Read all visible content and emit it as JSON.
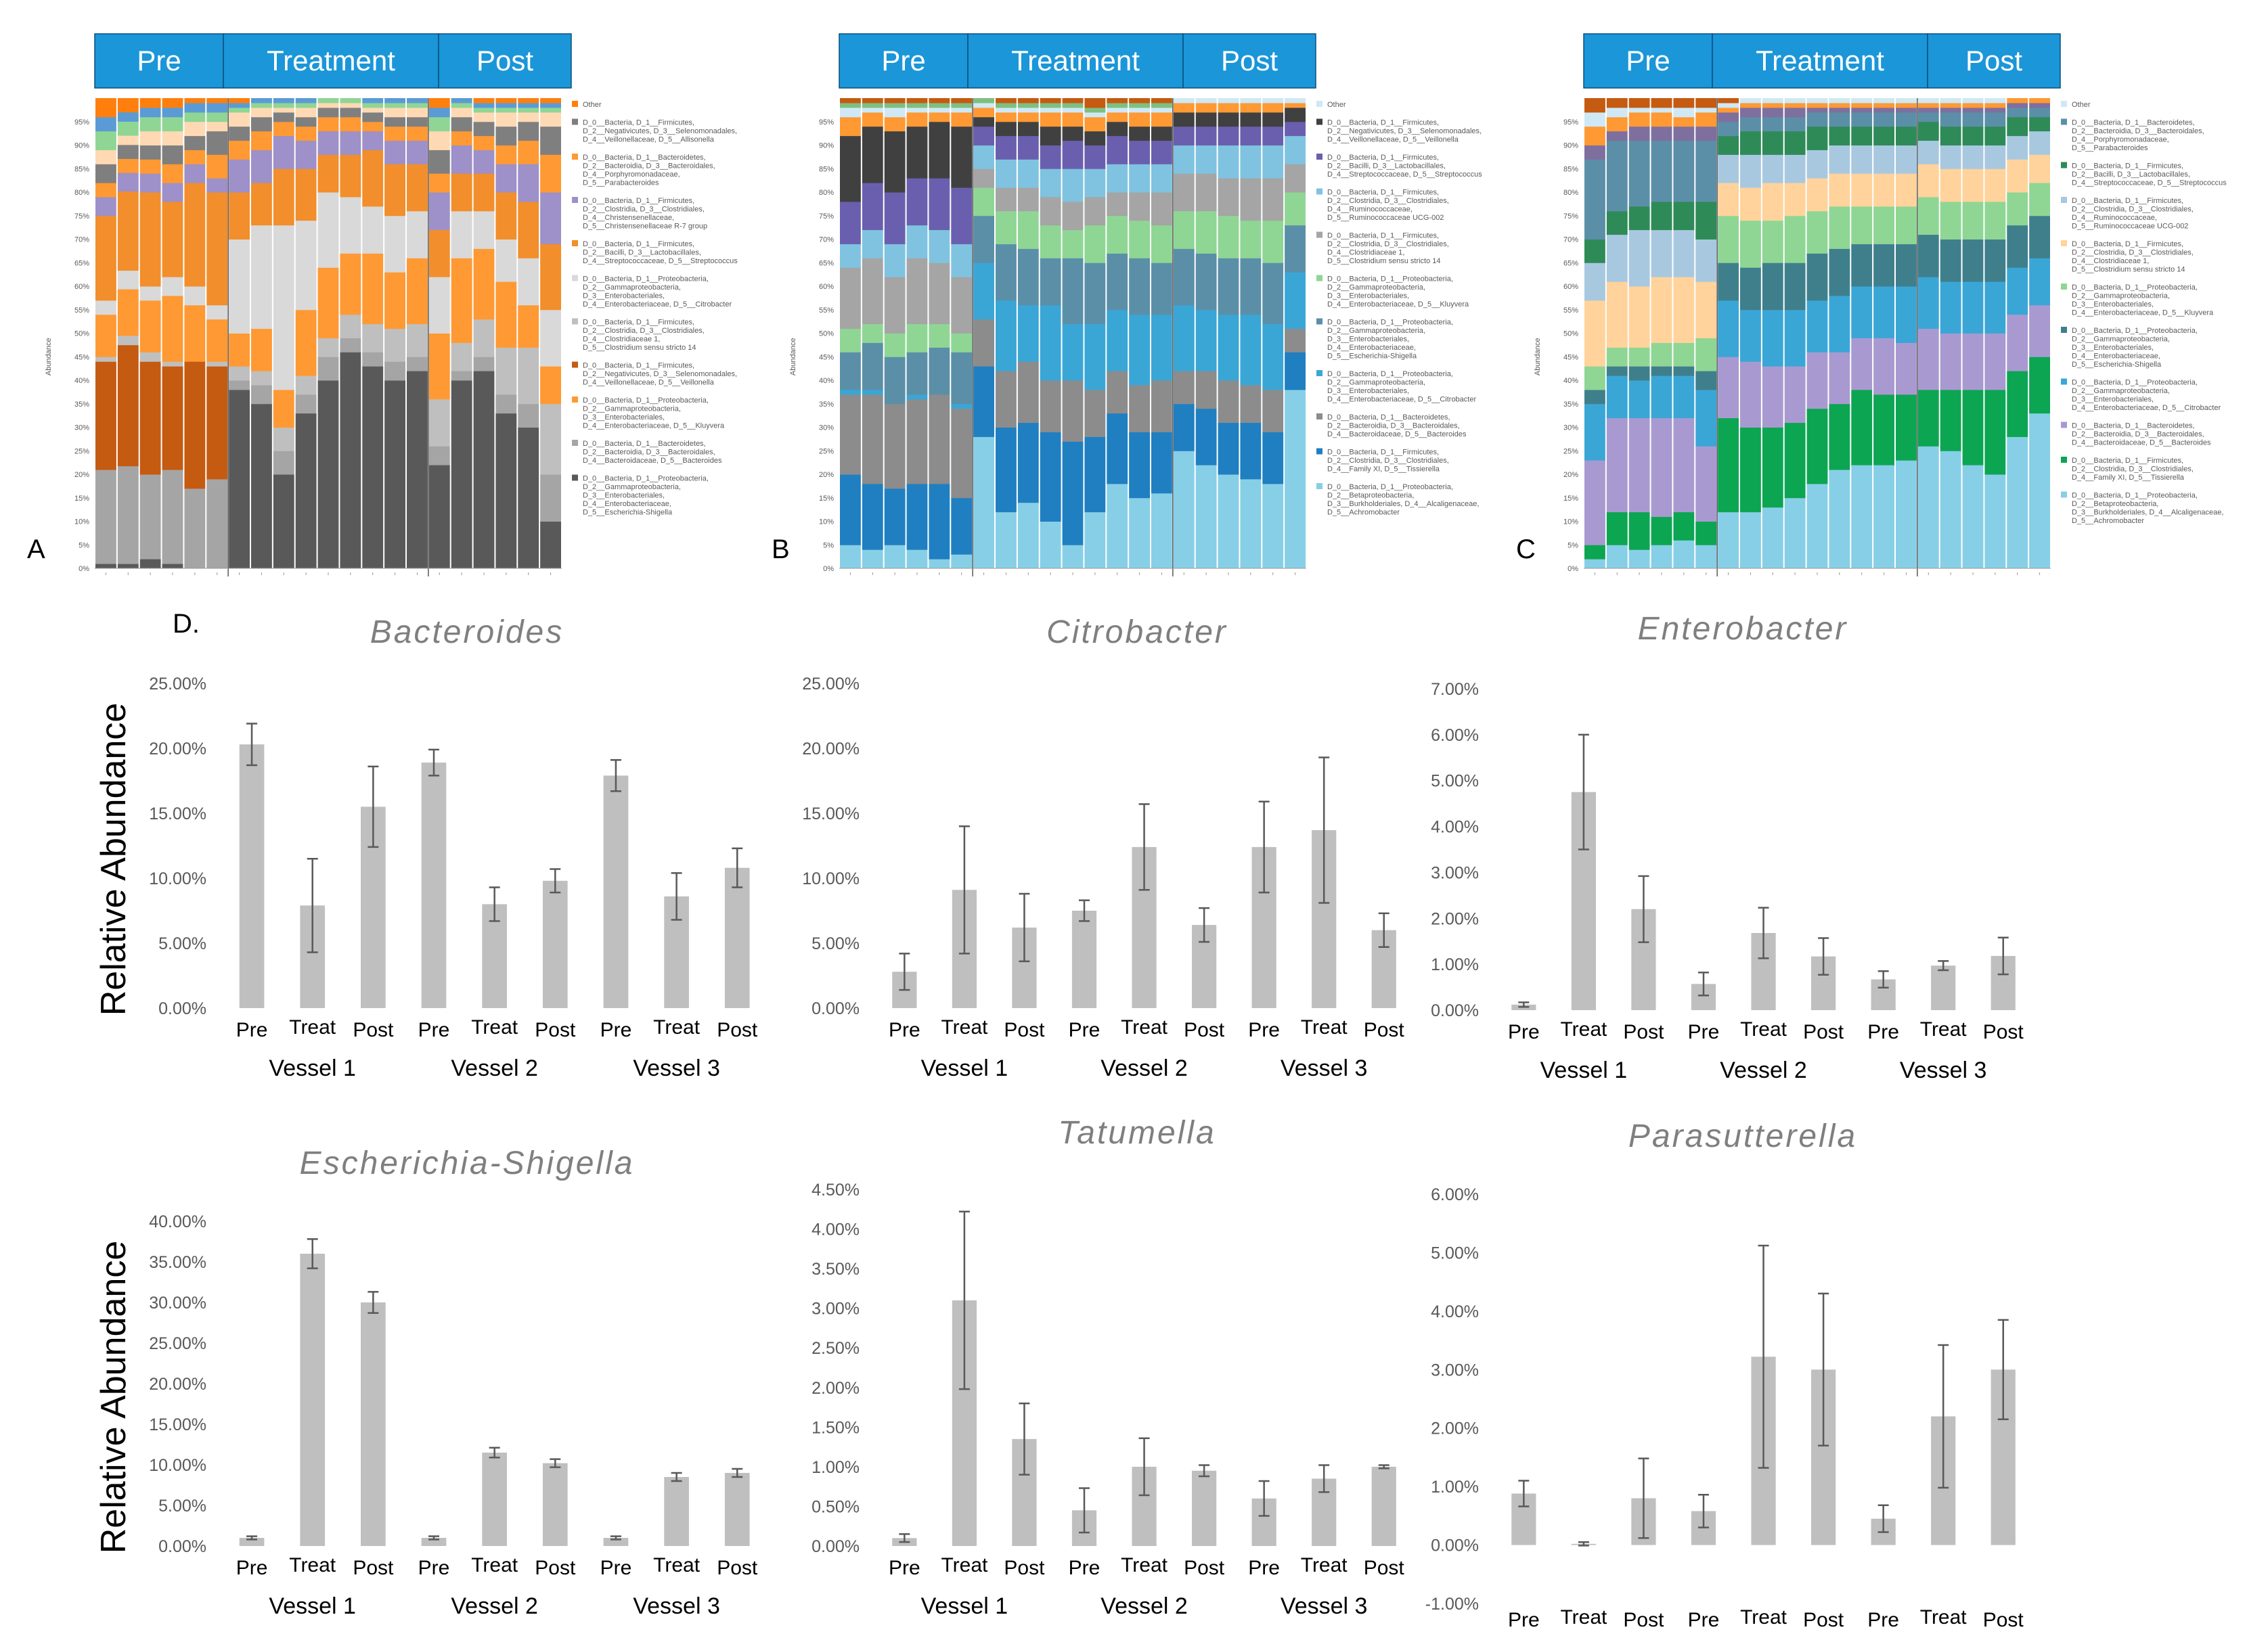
{
  "phase_headers": [
    "Pre",
    "Treatment",
    "Post"
  ],
  "panel_letters": [
    "A",
    "B",
    "C",
    "D."
  ],
  "stacked_panels": [
    {
      "letter": "A",
      "ylabel": "Abundance",
      "yticks": [
        "0%",
        "5%",
        "10%",
        "15%",
        "20%",
        "25%",
        "30%",
        "35%",
        "40%",
        "45%",
        "50%",
        "55%",
        "60%",
        "65%",
        "70%",
        "75%",
        "80%",
        "85%",
        "90%",
        "95%"
      ],
      "legend": [
        {
          "color": "#ff7f0e",
          "text": "Other"
        },
        {
          "color": "#7f7f7f",
          "text": "D_0__Bacteria, D_1__Firmicutes, D_2__Negativicutes, D_3__Selenomonadales, D_4__Veillonellaceae, D_5__Allisonella"
        },
        {
          "color": "#ff9933",
          "text": "D_0__Bacteria, D_1__Bacteroidetes, D_2__Bacteroidia, D_3__Bacteroidales, D_4__Porphyromonadaceae, D_5__Parabacteroides"
        },
        {
          "color": "#9e90c8",
          "text": "D_0__Bacteria, D_1__Firmicutes, D_2__Clostridia, D_3__Clostridiales, D_4__Christensenellaceae, D_5__Christensenellaceae R-7 group"
        },
        {
          "color": "#f28e2b",
          "text": "D_0__Bacteria, D_1__Firmicutes, D_2__Bacilli, D_3__Lactobacillales, D_4__Streptococcaceae, D_5__Streptococcus"
        },
        {
          "color": "#d9d9d9",
          "text": "D_0__Bacteria, D_1__Proteobacteria, D_2__Gammaproteobacteria, D_3__Enterobacteriales, D_4__Enterobacteriaceae, D_5__Citrobacter"
        },
        {
          "color": "#bfbfbf",
          "text": "D_0__Bacteria, D_1__Firmicutes, D_2__Clostridia, D_3__Clostridiales, D_4__Clostridiaceae 1, D_5__Clostridium sensu stricto 14"
        },
        {
          "color": "#c55a11",
          "text": "D_0__Bacteria, D_1__Firmicutes, D_2__Negativicutes, D_3__Selenomonadales, D_4__Veillonellaceae, D_5__Veillonella"
        },
        {
          "color": "#ff9933",
          "text": "D_0__Bacteria, D_1__Proteobacteria, D_2__Gammaproteobacteria, D_3__Enterobacteriales, D_4__Enterobacteriaceae, D_5__Kluyvera"
        },
        {
          "color": "#a5a5a5",
          "text": "D_0__Bacteria, D_1__Bacteroidetes, D_2__Bacteroidia, D_3__Bacteroidales, D_4__Bacteroidaceae, D_5__Bacteroides"
        },
        {
          "color": "#595959",
          "text": "D_0__Bacteria, D_1__Proteobacteria, D_2__Gammaproteobacteria, D_3__Enterobacteriales, D_4__Enterobacteriaceae, D_5__Escherichia-Shigella"
        }
      ]
    },
    {
      "letter": "B",
      "ylabel": "Abundance",
      "yticks": [
        "0%",
        "5%",
        "10%",
        "15%",
        "20%",
        "25%",
        "30%",
        "35%",
        "40%",
        "45%",
        "50%",
        "55%",
        "60%",
        "65%",
        "70%",
        "75%",
        "80%",
        "85%",
        "90%",
        "95%"
      ],
      "legend": [
        {
          "color": "#cfe8f5",
          "text": "Other"
        },
        {
          "color": "#404040",
          "text": "D_0__Bacteria, D_1__Firmicutes, D_2__Negativicutes, D_3__Selenomonadales, D_4__Veillonellaceae, D_5__Veillonella"
        },
        {
          "color": "#6a5fae",
          "text": "D_0__Bacteria, D_1__Firmicutes, D_2__Bacilli, D_3__Lactobacillales, D_4__Streptococcaceae, D_5__Streptococcus"
        },
        {
          "color": "#7fc3e0",
          "text": "D_0__Bacteria, D_1__Firmicutes, D_2__Clostridia, D_3__Clostridiales, D_4__Ruminococcaceae, D_5__Ruminococcaceae UCG-002"
        },
        {
          "color": "#a5a5a5",
          "text": "D_0__Bacteria, D_1__Firmicutes, D_2__Clostridia, D_3__Clostridiales, D_4__Clostridiaceae 1, D_5__Clostridium sensu stricto 14"
        },
        {
          "color": "#8fd694",
          "text": "D_0__Bacteria, D_1__Proteobacteria, D_2__Gammaproteobacteria, D_3__Enterobacteriales, D_4__Enterobacteriaceae, D_5__Kluyvera"
        },
        {
          "color": "#5b8fa8",
          "text": "D_0__Bacteria, D_1__Proteobacteria, D_2__Gammaproteobacteria, D_3__Enterobacteriales, D_4__Enterobacteriaceae, D_5__Escherichia-Shigella"
        },
        {
          "color": "#3aa6d6",
          "text": "D_0__Bacteria, D_1__Proteobacteria, D_2__Gammaproteobacteria, D_3__Enterobacteriales, D_4__Enterobacteriaceae, D_5__Citrobacter"
        },
        {
          "color": "#8c8c8c",
          "text": "D_0__Bacteria, D_1__Bacteroidetes, D_2__Bacteroidia, D_3__Bacteroidales, D_4__Bacteroidaceae, D_5__Bacteroides"
        },
        {
          "color": "#1f7fc1",
          "text": "D_0__Bacteria, D_1__Firmicutes, D_2__Clostridia, D_3__Clostridiales, D_4__Family XI, D_5__Tissierella"
        },
        {
          "color": "#87cfe6",
          "text": "D_0__Bacteria, D_1__Proteobacteria, D_2__Betaproteobacteria, D_3__Burkholderiales, D_4__Alcaligenaceae, D_5__Achromobacter"
        }
      ]
    },
    {
      "letter": "C",
      "ylabel": "Abundance",
      "yticks": [
        "0%",
        "5%",
        "10%",
        "15%",
        "20%",
        "25%",
        "30%",
        "35%",
        "40%",
        "45%",
        "50%",
        "55%",
        "60%",
        "65%",
        "70%",
        "75%",
        "80%",
        "85%",
        "90%",
        "95%"
      ],
      "legend": [
        {
          "color": "#cfe8f5",
          "text": "Other"
        },
        {
          "color": "#5b8fa8",
          "text": "D_0__Bacteria, D_1__Bacteroidetes, D_2__Bacteroidia, D_3__Bacteroidales, D_4__Porphyromonadaceae, D_5__Parabacteroides"
        },
        {
          "color": "#2e8b57",
          "text": "D_0__Bacteria, D_1__Firmicutes, D_2__Bacilli, D_3__Lactobacillales, D_4__Streptococcaceae, D_5__Streptococcus"
        },
        {
          "color": "#a8c8e0",
          "text": "D_0__Bacteria, D_1__Firmicutes, D_2__Clostridia, D_3__Clostridiales, D_4__Ruminococcaceae, D_5__Ruminococcaceae UCG-002"
        },
        {
          "color": "#ffd39b",
          "text": "D_0__Bacteria, D_1__Firmicutes, D_2__Clostridia, D_3__Clostridiales, D_4__Clostridiaceae 1, D_5__Clostridium sensu stricto 14"
        },
        {
          "color": "#8fd694",
          "text": "D_0__Bacteria, D_1__Proteobacteria, D_2__Gammaproteobacteria, D_3__Enterobacteriales, D_4__Enterobacteriaceae, D_5__Kluyvera"
        },
        {
          "color": "#3f7f8c",
          "text": "D_0__Bacteria, D_1__Proteobacteria, D_2__Gammaproteobacteria, D_3__Enterobacteriales, D_4__Enterobacteriaceae, D_5__Escherichia-Shigella"
        },
        {
          "color": "#3aa6d6",
          "text": "D_0__Bacteria, D_1__Proteobacteria, D_2__Gammaproteobacteria, D_3__Enterobacteriales, D_4__Enterobacteriaceae, D_5__Citrobacter"
        },
        {
          "color": "#a89ad0",
          "text": "D_0__Bacteria, D_1__Bacteroidetes, D_2__Bacteroidia, D_3__Bacteroidales, D_4__Bacteroidaceae, D_5__Bacteroides"
        },
        {
          "color": "#0ca552",
          "text": "D_0__Bacteria, D_1__Firmicutes, D_2__Clostridia, D_3__Clostridiales, D_4__Family XI, D_5__Tissierella"
        },
        {
          "color": "#87cfe6",
          "text": "D_0__Bacteria, D_1__Proteobacteria, D_2__Betaproteobacteria, D_3__Burkholderiales, D_4__Alcaligenaceae, D_5__Achromobacter"
        }
      ]
    }
  ],
  "ylabel_common": "Relative Abundance",
  "phase_labels": [
    "Pre",
    "Treat",
    "Post"
  ],
  "vessel_labels": [
    "Vessel 1",
    "Vessel 2",
    "Vessel 3"
  ],
  "colors": {
    "header": "#1b96d9",
    "bar": "#bfbfbf",
    "error": "#595959"
  },
  "chart_data": [
    {
      "type": "bar",
      "title": "Bacteroides",
      "ylabel": "Relative Abundance",
      "ylim": [
        0,
        25
      ],
      "yticks": [
        "0.00%",
        "5.00%",
        "10.00%",
        "15.00%",
        "20.00%",
        "25.00%"
      ],
      "categories": [
        "Vessel 1 Pre",
        "Vessel 1 Treat",
        "Vessel 1 Post",
        "Vessel 2 Pre",
        "Vessel 2 Treat",
        "Vessel 2 Post",
        "Vessel 3 Pre",
        "Vessel 3 Treat",
        "Vessel 3 Post"
      ],
      "values": [
        20.3,
        7.9,
        15.5,
        18.9,
        8.0,
        9.8,
        17.9,
        8.6,
        10.8
      ],
      "errors": [
        1.6,
        3.6,
        3.1,
        1.0,
        1.3,
        0.9,
        1.2,
        1.8,
        1.5
      ]
    },
    {
      "type": "bar",
      "title": "Citrobacter",
      "ylabel": "",
      "ylim": [
        0,
        25
      ],
      "yticks": [
        "0.00%",
        "5.00%",
        "10.00%",
        "15.00%",
        "20.00%",
        "25.00%"
      ],
      "categories": [
        "Vessel 1 Pre",
        "Vessel 1 Treat",
        "Vessel 1 Post",
        "Vessel 2 Pre",
        "Vessel 2 Treat",
        "Vessel 2 Post",
        "Vessel 3 Pre",
        "Vessel 3 Treat",
        "Vessel 3 Post"
      ],
      "values": [
        2.8,
        9.1,
        6.2,
        7.5,
        12.4,
        6.4,
        12.4,
        13.7,
        6.0
      ],
      "errors": [
        1.4,
        4.9,
        2.6,
        0.8,
        3.3,
        1.3,
        3.5,
        5.6,
        1.3
      ]
    },
    {
      "type": "bar",
      "title": "Enterobacter",
      "ylabel": "",
      "ylim": [
        0,
        7
      ],
      "yticks": [
        "0.00%",
        "1.00%",
        "2.00%",
        "3.00%",
        "4.00%",
        "5.00%",
        "6.00%",
        "7.00%"
      ],
      "categories": [
        "Vessel 1 Pre",
        "Vessel 1 Treat",
        "Vessel 1 Post",
        "Vessel 2 Pre",
        "Vessel 2 Treat",
        "Vessel 2 Post",
        "Vessel 3 Pre",
        "Vessel 3 Treat",
        "Vessel 3 Post"
      ],
      "values": [
        0.12,
        4.75,
        2.2,
        0.57,
        1.68,
        1.17,
        0.67,
        0.97,
        1.18
      ],
      "errors": [
        0.05,
        1.25,
        0.72,
        0.25,
        0.55,
        0.4,
        0.18,
        0.1,
        0.4
      ]
    },
    {
      "type": "bar",
      "title": "Escherichia-Shigella",
      "ylabel": "Relative Abundance",
      "ylim": [
        0,
        40
      ],
      "yticks": [
        "0.00%",
        "5.00%",
        "10.00%",
        "15.00%",
        "20.00%",
        "25.00%",
        "30.00%",
        "35.00%",
        "40.00%"
      ],
      "categories": [
        "Vessel 1 Pre",
        "Vessel 1 Treat",
        "Vessel 1 Post",
        "Vessel 2 Pre",
        "Vessel 2 Treat",
        "Vessel 2 Post",
        "Vessel 3 Pre",
        "Vessel 3 Treat",
        "Vessel 3 Post"
      ],
      "values": [
        1.0,
        36.0,
        30.0,
        1.0,
        11.5,
        10.2,
        1.0,
        8.5,
        9.0
      ],
      "errors": [
        0.2,
        1.8,
        1.3,
        0.2,
        0.6,
        0.5,
        0.2,
        0.5,
        0.5
      ]
    },
    {
      "type": "bar",
      "title": "Tatumella",
      "ylabel": "",
      "ylim": [
        0,
        4.5
      ],
      "yticks": [
        "0.00%",
        "0.50%",
        "1.00%",
        "1.50%",
        "2.00%",
        "2.50%",
        "3.00%",
        "3.50%",
        "4.00%",
        "4.50%"
      ],
      "categories": [
        "Vessel 1 Pre",
        "Vessel 1 Treat",
        "Vessel 1 Post",
        "Vessel 2 Pre",
        "Vessel 2 Treat",
        "Vessel 2 Post",
        "Vessel 3 Pre",
        "Vessel 3 Treat",
        "Vessel 3 Post"
      ],
      "values": [
        0.1,
        3.1,
        1.35,
        0.45,
        1.0,
        0.95,
        0.6,
        0.85,
        1.0
      ],
      "errors": [
        0.05,
        1.12,
        0.45,
        0.28,
        0.36,
        0.07,
        0.22,
        0.17,
        0.02
      ]
    },
    {
      "type": "bar",
      "title": "Parasutterella",
      "ylabel": "",
      "ylim": [
        -1,
        6
      ],
      "yticks": [
        "-1.00%",
        "0.00%",
        "1.00%",
        "2.00%",
        "3.00%",
        "4.00%",
        "5.00%",
        "6.00%"
      ],
      "categories": [
        "Vessel 1 Pre",
        "Vessel 1 Treat",
        "Vessel 1 Post",
        "Vessel 2 Pre",
        "Vessel 2 Treat",
        "Vessel 2 Post",
        "Vessel 3 Pre",
        "Vessel 3 Treat",
        "Vessel 3 Post"
      ],
      "values": [
        0.88,
        0.02,
        0.8,
        0.58,
        3.22,
        3.0,
        0.45,
        2.2,
        3.0
      ],
      "errors": [
        0.22,
        0.03,
        0.68,
        0.28,
        1.9,
        1.3,
        0.23,
        1.22,
        0.85
      ]
    }
  ]
}
